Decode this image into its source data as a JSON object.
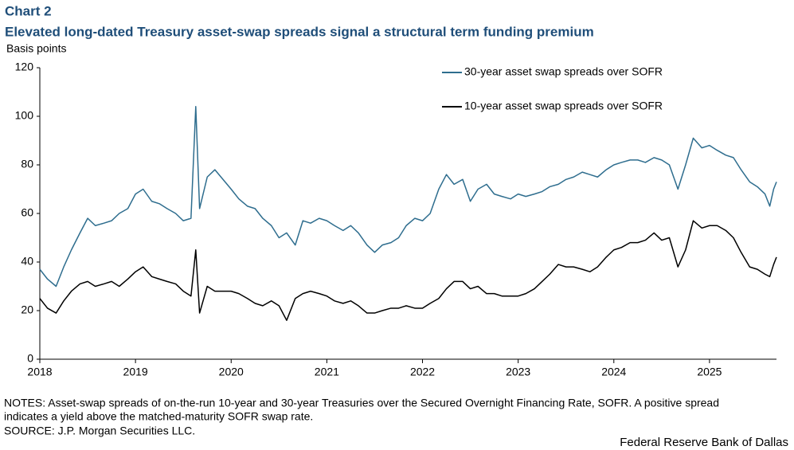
{
  "chart_data": {
    "type": "line",
    "chart_label": "Chart 2",
    "title": "Elevated long-dated Treasury asset-swap spreads signal a structural term funding premium",
    "y_label": "Basis points",
    "x": [
      2018,
      2018.08,
      2018.17,
      2018.25,
      2018.33,
      2018.42,
      2018.5,
      2018.58,
      2018.67,
      2018.75,
      2018.83,
      2018.92,
      2019,
      2019.08,
      2019.17,
      2019.25,
      2019.33,
      2019.42,
      2019.5,
      2019.58,
      2019.63,
      2019.67,
      2019.75,
      2019.83,
      2020,
      2020.08,
      2020.17,
      2020.25,
      2020.33,
      2020.42,
      2020.5,
      2020.58,
      2020.67,
      2020.75,
      2020.83,
      2020.92,
      2021,
      2021.08,
      2021.17,
      2021.25,
      2021.33,
      2021.42,
      2021.5,
      2021.58,
      2021.67,
      2021.75,
      2021.83,
      2021.92,
      2022,
      2022.08,
      2022.17,
      2022.25,
      2022.33,
      2022.42,
      2022.5,
      2022.58,
      2022.67,
      2022.75,
      2022.83,
      2022.92,
      2023,
      2023.08,
      2023.17,
      2023.25,
      2023.33,
      2023.42,
      2023.5,
      2023.58,
      2023.67,
      2023.75,
      2023.83,
      2023.92,
      2024,
      2024.08,
      2024.17,
      2024.25,
      2024.33,
      2024.42,
      2024.5,
      2024.58,
      2024.67,
      2024.75,
      2024.83,
      2024.92,
      2025,
      2025.08,
      2025.17,
      2025.25,
      2025.33,
      2025.42,
      2025.5,
      2025.58,
      2025.63,
      2025.67,
      2025.7
    ],
    "series": [
      {
        "name": "30-year asset swap spreads over SOFR",
        "color": "#2e6d8e",
        "values": [
          37,
          33,
          30,
          38,
          45,
          52,
          58,
          55,
          56,
          57,
          60,
          62,
          68,
          70,
          65,
          64,
          62,
          60,
          57,
          58,
          104,
          62,
          75,
          78,
          70,
          66,
          63,
          62,
          58,
          55,
          50,
          52,
          47,
          57,
          56,
          58,
          57,
          55,
          53,
          55,
          52,
          47,
          44,
          47,
          48,
          50,
          55,
          58,
          57,
          60,
          70,
          76,
          72,
          74,
          65,
          70,
          72,
          68,
          67,
          66,
          68,
          67,
          68,
          69,
          71,
          72,
          74,
          75,
          77,
          76,
          75,
          78,
          80,
          81,
          82,
          82,
          81,
          83,
          82,
          80,
          70,
          80,
          91,
          87,
          88,
          86,
          84,
          83,
          78,
          73,
          71,
          68,
          63,
          70,
          73
        ]
      },
      {
        "name": "10-year asset swap spreads over SOFR",
        "color": "#000000",
        "values": [
          25,
          21,
          19,
          24,
          28,
          31,
          32,
          30,
          31,
          32,
          30,
          33,
          36,
          38,
          34,
          33,
          32,
          31,
          28,
          26,
          45,
          19,
          30,
          28,
          28,
          27,
          25,
          23,
          22,
          24,
          22,
          16,
          25,
          27,
          28,
          27,
          26,
          24,
          23,
          24,
          22,
          19,
          19,
          20,
          21,
          21,
          22,
          21,
          21,
          23,
          25,
          29,
          32,
          32,
          29,
          30,
          27,
          27,
          26,
          26,
          26,
          27,
          29,
          32,
          35,
          39,
          38,
          38,
          37,
          36,
          38,
          42,
          45,
          46,
          48,
          48,
          49,
          52,
          49,
          50,
          38,
          45,
          57,
          54,
          55,
          55,
          53,
          50,
          44,
          38,
          37,
          35,
          34,
          39,
          42
        ]
      }
    ],
    "xlim": [
      2018,
      2025.7
    ],
    "xticks": [
      2018,
      2019,
      2020,
      2021,
      2022,
      2023,
      2024,
      2025
    ],
    "ylim": [
      0,
      120
    ],
    "yticks": [
      0,
      20,
      40,
      60,
      80,
      100,
      120
    ],
    "grid": false,
    "notes": [
      "NOTES: Asset-swap spreads of on-the-run 10-year and 30-year Treasuries over the Secured Overnight Financing Rate, SOFR. A positive spread",
      "indicates a yield above the matched-maturity SOFR swap rate."
    ],
    "source": "SOURCE: J.P. Morgan Securities LLC.",
    "credit": "Federal Reserve Bank of Dallas"
  }
}
